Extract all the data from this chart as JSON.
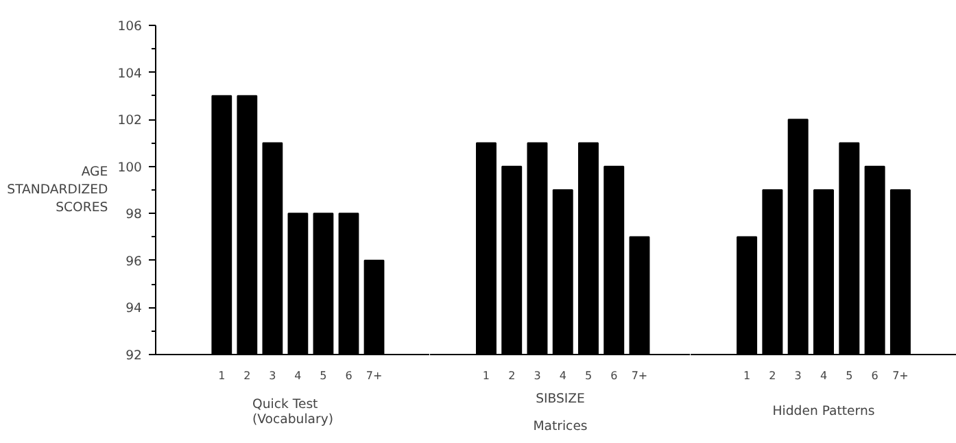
{
  "chart_data": [
    {
      "type": "bar",
      "title": "Quick Test\n(Vocabulary)",
      "ylabel": "AGE\nSTANDARDIZED\nSCORES",
      "categories": [
        "1",
        "2",
        "3",
        "4",
        "5",
        "6",
        "7+"
      ],
      "values": [
        103,
        103,
        101,
        98,
        98,
        98,
        96
      ],
      "color": "#000000",
      "ylim": [
        92,
        106
      ],
      "yticks": [
        92,
        94,
        96,
        98,
        100,
        102,
        104,
        106
      ]
    },
    {
      "type": "bar",
      "title": "Matrices",
      "xlabel": "SIBSIZE",
      "categories": [
        "1",
        "2",
        "3",
        "4",
        "5",
        "6",
        "7+"
      ],
      "values": [
        101,
        100,
        101,
        99,
        101,
        100,
        97
      ],
      "color": "#000000",
      "ylim": [
        92,
        106
      ],
      "tick_labels": "x"
    },
    {
      "type": "bar",
      "title": "Hidden Patterns",
      "categories": [
        "1",
        "2",
        "3",
        "4",
        "5",
        "6",
        "7+"
      ],
      "values": [
        97,
        99,
        102,
        99,
        101,
        100,
        99
      ],
      "color": "#000000",
      "ylim": [
        92,
        106
      ],
      "tick_labels": "x"
    }
  ]
}
